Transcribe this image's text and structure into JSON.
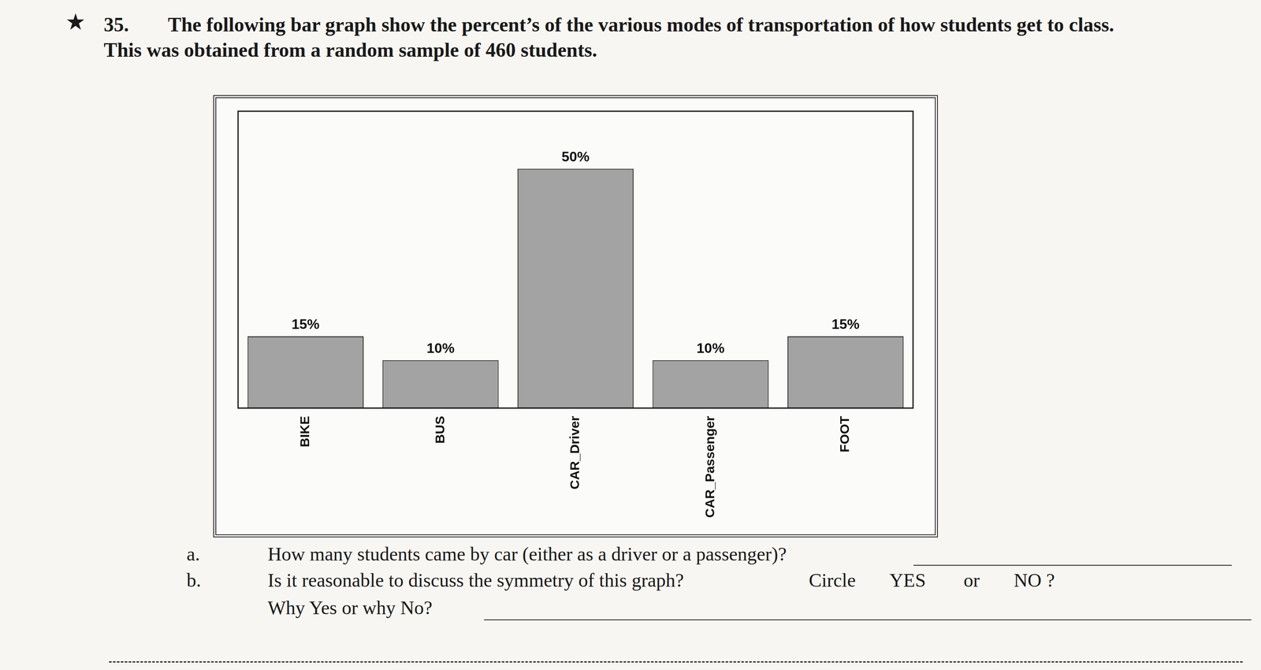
{
  "chart_data": {
    "type": "bar",
    "categories": [
      "BIKE",
      "BUS",
      "CAR_Driver",
      "CAR_Passenger",
      "FOOT"
    ],
    "values": [
      15,
      10,
      50,
      10,
      15
    ],
    "value_labels": [
      "15%",
      "10%",
      "50%",
      "10%",
      "15%"
    ],
    "data_labels": true,
    "color": "#a3a3a3",
    "ylim": [
      0,
      62
    ],
    "grid": false,
    "tick_labels": "x"
  },
  "document": {
    "star": "★",
    "number": "35.",
    "question_line1": "The following bar graph show the percent’s of the various modes of transportation of how students get to class.",
    "question_line2": "This was obtained from a random sample of 460 students.",
    "part_a": {
      "letter": "a.",
      "text": "How many students came by car (either as a driver or a passenger)?"
    },
    "part_b": {
      "letter": "b.",
      "text": "Is it reasonable to discuss the symmetry of this graph?",
      "circle": "Circle",
      "yes": "YES",
      "or": "or",
      "no": "NO ?",
      "why": "Why Yes or why No?"
    }
  }
}
